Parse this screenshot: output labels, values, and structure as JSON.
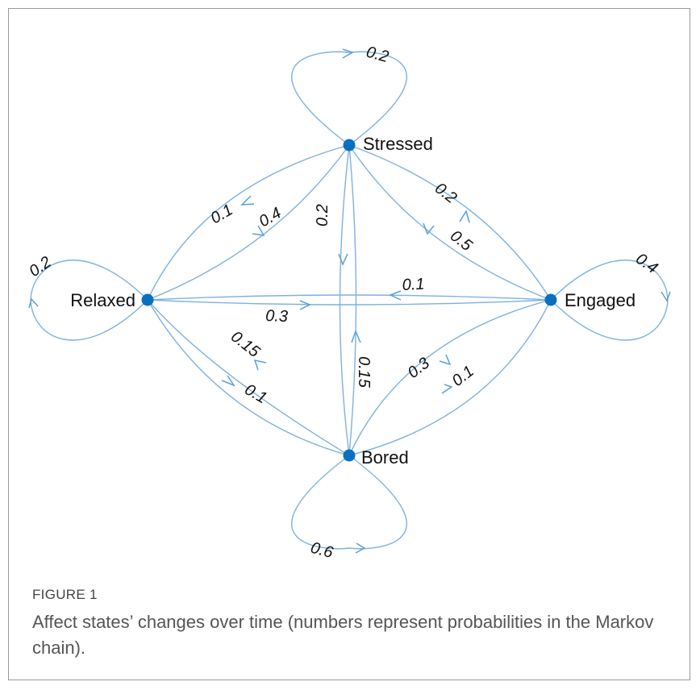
{
  "figure": {
    "label": "FIGURE 1",
    "caption": "Affect states’ changes over time (numbers represent probabilities in the Markov chain)."
  },
  "diagram": {
    "type": "markov-chain",
    "nodes": {
      "stressed": "Stressed",
      "relaxed": "Relaxed",
      "engaged": "Engaged",
      "bored": "Bored"
    },
    "edge_color": "#7fb1de",
    "node_color": "#0b6fbf",
    "transitions": [
      {
        "from": "Stressed",
        "to": "Stressed",
        "label": "0.2"
      },
      {
        "from": "Stressed",
        "to": "Relaxed",
        "label": "0.1"
      },
      {
        "from": "Relaxed",
        "to": "Stressed",
        "label": "0.4"
      },
      {
        "from": "Stressed",
        "to": "Bored",
        "label": "0.2"
      },
      {
        "from": "Engaged",
        "to": "Stressed",
        "label": "0.2"
      },
      {
        "from": "Stressed",
        "to": "Engaged",
        "label": "0.5"
      },
      {
        "from": "Relaxed",
        "to": "Relaxed",
        "label": "0.2"
      },
      {
        "from": "Engaged",
        "to": "Relaxed",
        "label": "0.1"
      },
      {
        "from": "Relaxed",
        "to": "Engaged",
        "label": "0.3"
      },
      {
        "from": "Engaged",
        "to": "Engaged",
        "label": "0.4"
      },
      {
        "from": "Bored",
        "to": "Relaxed",
        "label": "0.15"
      },
      {
        "from": "Relaxed",
        "to": "Bored",
        "label": "0.1"
      },
      {
        "from": "Bored",
        "to": "Stressed",
        "label": "0.15"
      },
      {
        "from": "Engaged",
        "to": "Bored",
        "label": "0.3"
      },
      {
        "from": "Bored",
        "to": "Engaged",
        "label": "0.1"
      },
      {
        "from": "Bored",
        "to": "Bored",
        "label": "0.6"
      }
    ]
  }
}
